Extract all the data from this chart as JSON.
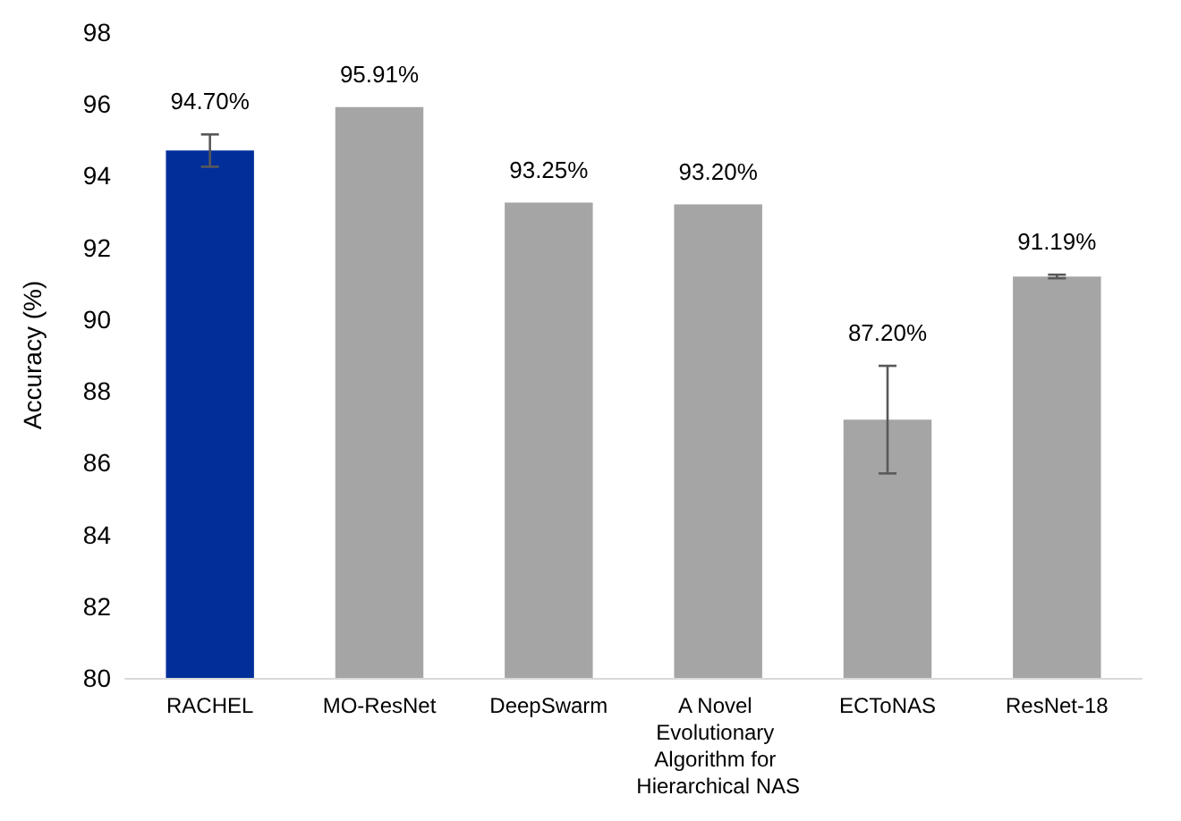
{
  "chart_data": {
    "type": "bar",
    "ylabel": "Accuracy (%)",
    "categories": [
      "RACHEL",
      "MO-ResNet",
      "DeepSwarm",
      "A Novel Evolutionary Algorithm for Hierarchical NAS",
      "ECToNAS",
      "ResNet-18"
    ],
    "values": [
      94.7,
      95.91,
      93.25,
      93.2,
      87.2,
      91.19
    ],
    "colors": [
      "#002f9a",
      "#a5a5a5",
      "#a5a5a5",
      "#a5a5a5",
      "#a5a5a5",
      "#a5a5a5"
    ],
    "errors": [
      0.45,
      null,
      null,
      null,
      1.5,
      0.05
    ],
    "value_labels": [
      "94.70%",
      "95.91%",
      "93.25%",
      "93.20%",
      "87.20%",
      "91.19%"
    ],
    "ylim": [
      80,
      98
    ],
    "yticks": [
      80,
      82,
      84,
      86,
      88,
      90,
      92,
      94,
      96,
      98
    ]
  }
}
